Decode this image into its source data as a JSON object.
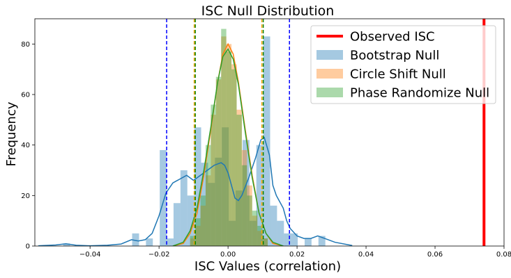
{
  "chart_data": {
    "type": "histogram",
    "title": "ISC Null Distribution",
    "xlabel": "ISC Values (correlation)",
    "ylabel": "Frequency",
    "xlim": [
      -0.056,
      0.08
    ],
    "ylim": [
      0,
      90
    ],
    "xticks": [
      -0.06,
      -0.04,
      -0.02,
      0.0,
      0.02,
      0.04,
      0.06,
      0.08
    ],
    "xtick_labels": [
      "−0.06",
      "−0.04",
      "−0.02",
      "0.00",
      "0.02",
      "0.04",
      "0.06",
      "0.08"
    ],
    "yticks": [
      0,
      20,
      40,
      60,
      80
    ],
    "ytick_labels": [
      "0",
      "20",
      "40",
      "60",
      "80"
    ],
    "grid": false,
    "legend_position": "top-right",
    "legend": [
      {
        "label": "Observed ISC",
        "kind": "line",
        "color": "#ff0000"
      },
      {
        "label": "Bootstrap Null",
        "kind": "patch",
        "color": "#1f77b4"
      },
      {
        "label": "Circle Shift Null",
        "kind": "patch",
        "color": "#ff7f0e"
      },
      {
        "label": "Phase Randomize Null",
        "kind": "patch",
        "color": "#2ca02c"
      }
    ],
    "observed_isc": 0.0742,
    "series": [
      {
        "name": "Bootstrap Null",
        "color": "#1f77b4",
        "bins": [
          [
            -0.0478,
            -0.0458,
            1
          ],
          [
            -0.0278,
            -0.0258,
            5
          ],
          [
            -0.0238,
            -0.0218,
            3
          ],
          [
            -0.0198,
            -0.0178,
            38
          ],
          [
            -0.0178,
            -0.0158,
            3
          ],
          [
            -0.0158,
            -0.0138,
            17
          ],
          [
            -0.0138,
            -0.0118,
            30
          ],
          [
            -0.0118,
            -0.0098,
            20
          ],
          [
            -0.0098,
            -0.0078,
            47
          ],
          [
            -0.0078,
            -0.0058,
            33
          ],
          [
            -0.0058,
            -0.0038,
            25
          ],
          [
            -0.0038,
            -0.0018,
            35
          ],
          [
            -0.0018,
            0.0002,
            47
          ],
          [
            0.0002,
            0.0022,
            10
          ],
          [
            0.0022,
            0.0042,
            22
          ],
          [
            0.0042,
            0.0062,
            42
          ],
          [
            0.0062,
            0.0082,
            10
          ],
          [
            0.0082,
            0.0102,
            40
          ],
          [
            0.0102,
            0.0122,
            83
          ],
          [
            0.0122,
            0.0142,
            16
          ],
          [
            0.0142,
            0.0162,
            10
          ],
          [
            0.0162,
            0.0182,
            5
          ],
          [
            0.0182,
            0.0202,
            5
          ],
          [
            0.0222,
            0.0242,
            3
          ],
          [
            0.0262,
            0.0282,
            4
          ]
        ],
        "kde": [
          [
            -0.055,
            0.1
          ],
          [
            -0.05,
            0.4
          ],
          [
            -0.047,
            0.9
          ],
          [
            -0.044,
            0.3
          ],
          [
            -0.04,
            0.1
          ],
          [
            -0.035,
            0.3
          ],
          [
            -0.031,
            0.8
          ],
          [
            -0.028,
            2.5
          ],
          [
            -0.026,
            2
          ],
          [
            -0.024,
            2.5
          ],
          [
            -0.022,
            5
          ],
          [
            -0.02,
            12
          ],
          [
            -0.018,
            21
          ],
          [
            -0.016,
            25
          ],
          [
            -0.014,
            26.5
          ],
          [
            -0.012,
            28
          ],
          [
            -0.01,
            26
          ],
          [
            -0.008,
            28
          ],
          [
            -0.006,
            30
          ],
          [
            -0.004,
            32
          ],
          [
            -0.002,
            33
          ],
          [
            -0.001,
            32
          ],
          [
            0.0,
            29
          ],
          [
            0.001,
            24
          ],
          [
            0.002,
            19
          ],
          [
            0.003,
            18
          ],
          [
            0.004,
            20
          ],
          [
            0.006,
            27
          ],
          [
            0.008,
            35
          ],
          [
            0.0095,
            42
          ],
          [
            0.0105,
            43
          ],
          [
            0.012,
            36
          ],
          [
            0.013,
            24
          ],
          [
            0.014,
            20
          ],
          [
            0.016,
            15
          ],
          [
            0.017,
            10
          ],
          [
            0.018,
            7
          ],
          [
            0.02,
            4
          ],
          [
            0.022,
            3
          ],
          [
            0.024,
            3
          ],
          [
            0.026,
            4
          ],
          [
            0.028,
            3
          ],
          [
            0.031,
            1.5
          ],
          [
            0.036,
            0.2
          ]
        ]
      },
      {
        "name": "Circle Shift Null",
        "color": "#ff7f0e",
        "bins": [
          [
            -0.011,
            -0.0095,
            3
          ],
          [
            -0.0095,
            -0.008,
            8
          ],
          [
            -0.008,
            -0.0065,
            16
          ],
          [
            -0.0065,
            -0.005,
            28
          ],
          [
            -0.005,
            -0.0035,
            52
          ],
          [
            -0.0035,
            -0.002,
            66
          ],
          [
            -0.002,
            -0.0005,
            83
          ],
          [
            -0.0005,
            0.001,
            80
          ],
          [
            0.001,
            0.0025,
            72
          ],
          [
            0.0025,
            0.004,
            54
          ],
          [
            0.004,
            0.0055,
            38
          ],
          [
            0.0055,
            0.007,
            24
          ],
          [
            0.007,
            0.0085,
            12
          ],
          [
            0.0085,
            0.01,
            6
          ],
          [
            0.01,
            0.0115,
            3
          ]
        ],
        "kde": [
          [
            -0.016,
            0
          ],
          [
            -0.013,
            1
          ],
          [
            -0.011,
            5
          ],
          [
            -0.009,
            13
          ],
          [
            -0.007,
            28
          ],
          [
            -0.005,
            46
          ],
          [
            -0.003,
            65
          ],
          [
            -0.0015,
            76
          ],
          [
            0.0,
            80
          ],
          [
            0.0015,
            76
          ],
          [
            0.003,
            65
          ],
          [
            0.005,
            46
          ],
          [
            0.007,
            28
          ],
          [
            0.009,
            13
          ],
          [
            0.011,
            5
          ],
          [
            0.013,
            1
          ],
          [
            0.016,
            0
          ]
        ]
      },
      {
        "name": "Phase Randomize Null",
        "color": "#2ca02c",
        "bins": [
          [
            -0.011,
            -0.0095,
            4
          ],
          [
            -0.0095,
            -0.008,
            11
          ],
          [
            -0.008,
            -0.0065,
            20
          ],
          [
            -0.0065,
            -0.005,
            40
          ],
          [
            -0.005,
            -0.0035,
            56
          ],
          [
            -0.0035,
            -0.002,
            67
          ],
          [
            -0.002,
            -0.0005,
            86
          ],
          [
            -0.0005,
            0.001,
            77
          ],
          [
            0.001,
            0.0025,
            70
          ],
          [
            0.0025,
            0.004,
            52
          ],
          [
            0.004,
            0.0055,
            32
          ],
          [
            0.0055,
            0.007,
            20
          ],
          [
            0.007,
            0.0085,
            14
          ],
          [
            0.0085,
            0.01,
            8
          ],
          [
            0.01,
            0.0115,
            3
          ]
        ],
        "kde": [
          [
            -0.016,
            0
          ],
          [
            -0.013,
            1.5
          ],
          [
            -0.011,
            6
          ],
          [
            -0.009,
            15
          ],
          [
            -0.007,
            30
          ],
          [
            -0.005,
            47
          ],
          [
            -0.003,
            65
          ],
          [
            -0.0015,
            75
          ],
          [
            0.0,
            78
          ],
          [
            0.0015,
            74
          ],
          [
            0.003,
            64
          ],
          [
            0.005,
            45
          ],
          [
            0.007,
            27
          ],
          [
            0.009,
            13
          ],
          [
            0.011,
            5
          ],
          [
            0.013,
            1.5
          ],
          [
            0.016,
            0
          ]
        ]
      }
    ],
    "threshold_lines": [
      {
        "x": -0.0178,
        "color": "#0000ff"
      },
      {
        "x": 0.0178,
        "color": "#0000ff"
      },
      {
        "x": -0.0098,
        "color": "#ffa500"
      },
      {
        "x": 0.0098,
        "color": "#ffa500"
      },
      {
        "x": -0.0095,
        "color": "#008000"
      },
      {
        "x": 0.0102,
        "color": "#008000"
      }
    ]
  }
}
